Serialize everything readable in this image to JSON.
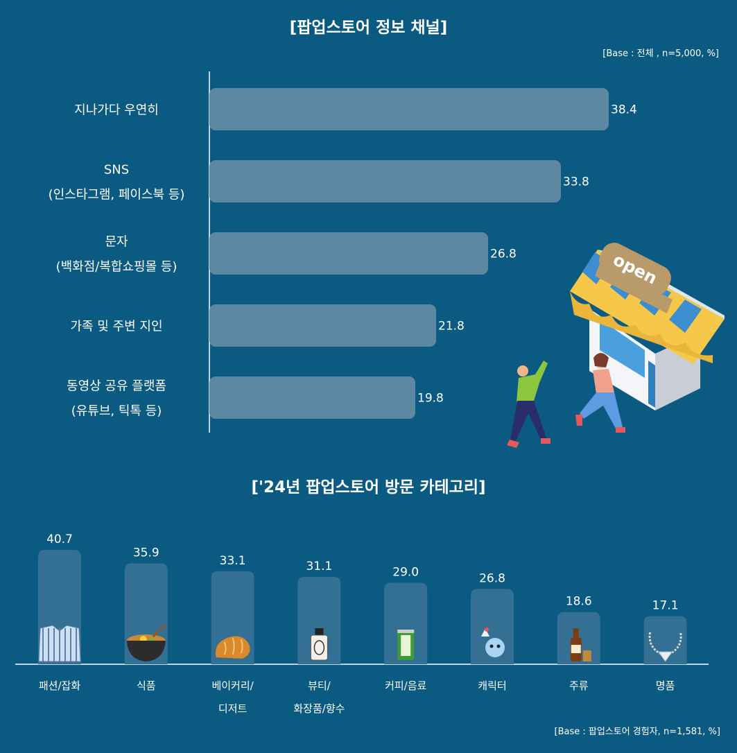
{
  "chart_data": [
    {
      "type": "bar",
      "orientation": "horizontal",
      "title": "[팝업스토어 정보 채널]",
      "base_note": "[Base : 전체 , n=5,000, %]",
      "categories": [
        [
          "지나가다 우연히"
        ],
        [
          "SNS",
          "(인스타그램, 페이스북 등)"
        ],
        [
          "문자",
          "(백화점/복합쇼핑몰 등)"
        ],
        [
          "가족 및 주변 지인"
        ],
        [
          "동영상 공유 플랫폼",
          "(유튜브, 틱톡 등)"
        ]
      ],
      "values": [
        38.4,
        33.8,
        26.8,
        21.8,
        19.8
      ],
      "value_labels": [
        "38.4",
        "33.8",
        "26.8",
        "21.8",
        "19.8"
      ],
      "xlim": [
        0,
        40
      ],
      "grid": false
    },
    {
      "type": "bar",
      "orientation": "vertical",
      "title": "['24년 팝업스토어 방문 카테고리]",
      "base_note": "[Base : 팝업스토어 경험자, n=1,581, %]",
      "categories": [
        [
          "패션/잡화"
        ],
        [
          "식품"
        ],
        [
          "베이커리/",
          "디저트"
        ],
        [
          "뷰티/",
          "화장품/향수"
        ],
        [
          "커피/음료"
        ],
        [
          "캐릭터"
        ],
        [
          "주류"
        ],
        [
          "명품"
        ]
      ],
      "values": [
        40.7,
        35.9,
        33.1,
        31.1,
        29.0,
        26.8,
        18.6,
        17.1
      ],
      "value_labels": [
        "40.7",
        "35.9",
        "33.1",
        "31.1",
        "29.0",
        "26.8",
        "18.6",
        "17.1"
      ],
      "icons": [
        "shirt-icon",
        "ramen-icon",
        "bread-icon",
        "perfume-icon",
        "drink-can-icon",
        "character-icon",
        "whiskey-icon",
        "necklace-icon"
      ],
      "ylim": [
        0,
        45
      ],
      "grid": false
    }
  ],
  "illustration": {
    "sign_text": "open"
  },
  "colors": {
    "background": "#0b5a82",
    "bar_h": "#5e87a2",
    "bar_v": "#346f94",
    "text": "#ffffff"
  }
}
